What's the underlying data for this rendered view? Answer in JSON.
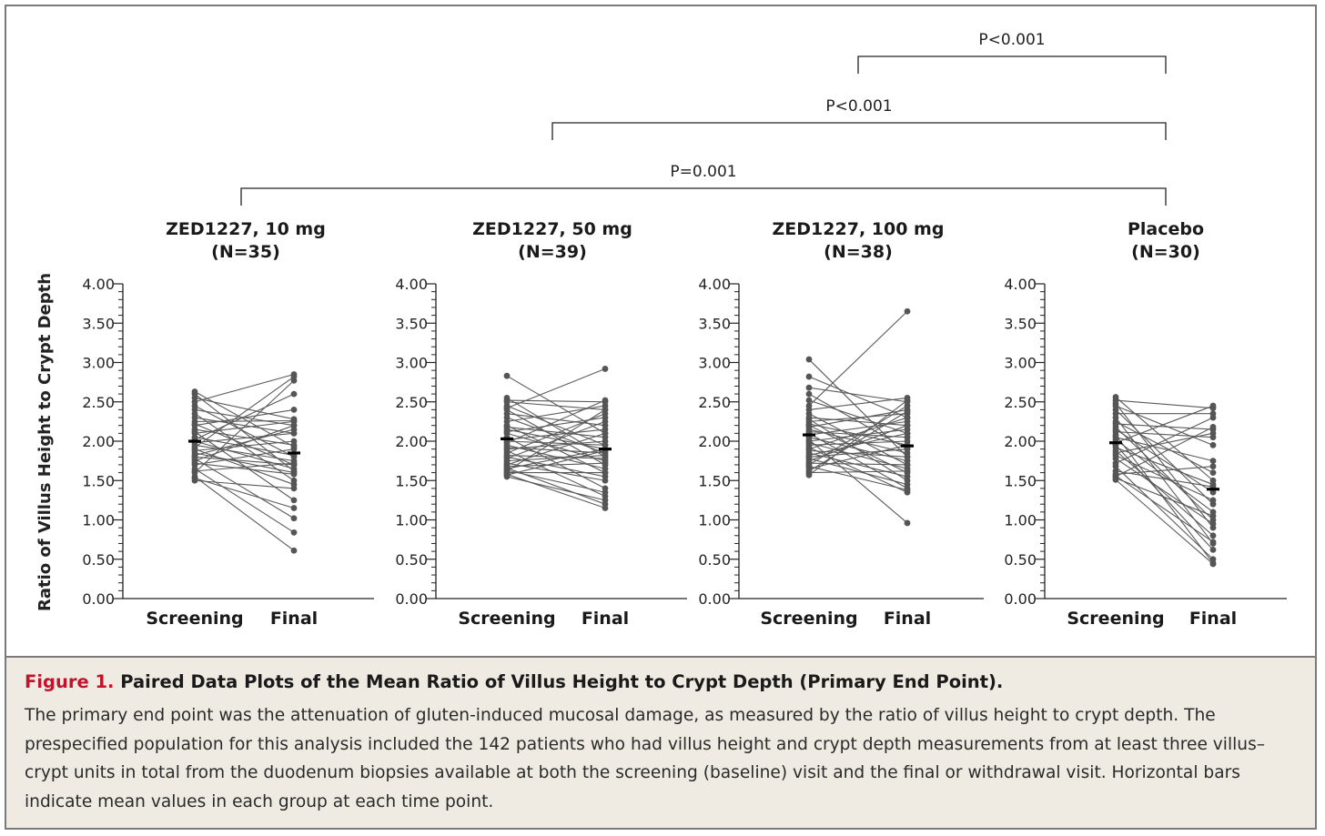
{
  "chart_data": {
    "type": "paired-dot",
    "ylabel": "Ratio of Villus Height to Crypt Depth",
    "ylim": [
      0,
      4
    ],
    "yticks": [
      "0.00",
      "0.50",
      "1.00",
      "1.50",
      "2.00",
      "2.50",
      "3.00",
      "3.50",
      "4.00"
    ],
    "x_categories": [
      "Screening",
      "Final"
    ],
    "comparisons": [
      {
        "label": "P<0.001",
        "from_panel": 2,
        "to_panel": 3
      },
      {
        "label": "P<0.001",
        "from_panel": 1,
        "to_panel": 3
      },
      {
        "label": "P=0.001",
        "from_panel": 0,
        "to_panel": 3
      }
    ],
    "panels": [
      {
        "name": "ZED1227, 10 mg",
        "n_label": "(N=35)",
        "mean_screening": 2.0,
        "mean_final": 1.85,
        "pairs": [
          [
            2.63,
            1.93
          ],
          [
            2.6,
            1.62
          ],
          [
            2.55,
            2.28
          ],
          [
            2.5,
            2.85
          ],
          [
            2.45,
            1.8
          ],
          [
            2.4,
            2.2
          ],
          [
            2.35,
            1.5
          ],
          [
            2.3,
            2.1
          ],
          [
            2.25,
            2.26
          ],
          [
            2.22,
            1.7
          ],
          [
            2.2,
            2.4
          ],
          [
            2.15,
            1.95
          ],
          [
            2.12,
            1.25
          ],
          [
            2.1,
            2.25
          ],
          [
            2.05,
            1.82
          ],
          [
            2.02,
            2.6
          ],
          [
            2.0,
            1.65
          ],
          [
            1.98,
            2.1
          ],
          [
            1.95,
            1.75
          ],
          [
            1.92,
            2.82
          ],
          [
            1.9,
            1.45
          ],
          [
            1.88,
            2.0
          ],
          [
            1.85,
            1.6
          ],
          [
            1.82,
            2.15
          ],
          [
            1.8,
            1.7
          ],
          [
            1.78,
            1.02
          ],
          [
            1.75,
            2.2
          ],
          [
            1.72,
            1.58
          ],
          [
            1.7,
            1.9
          ],
          [
            1.65,
            0.84
          ],
          [
            1.62,
            1.72
          ],
          [
            1.6,
            2.77
          ],
          [
            1.55,
            0.61
          ],
          [
            1.53,
            1.15
          ],
          [
            1.5,
            1.4
          ]
        ]
      },
      {
        "name": "ZED1227, 50 mg",
        "n_label": "(N=39)",
        "mean_screening": 2.03,
        "mean_final": 1.9,
        "pairs": [
          [
            2.83,
            2.1
          ],
          [
            2.55,
            1.8
          ],
          [
            2.52,
            2.5
          ],
          [
            2.5,
            2.4
          ],
          [
            2.45,
            1.95
          ],
          [
            2.42,
            2.92
          ],
          [
            2.4,
            1.7
          ],
          [
            2.35,
            2.2
          ],
          [
            2.3,
            1.85
          ],
          [
            2.25,
            2.45
          ],
          [
            2.2,
            1.6
          ],
          [
            2.18,
            2.05
          ],
          [
            2.15,
            1.9
          ],
          [
            2.12,
            2.3
          ],
          [
            2.1,
            1.75
          ],
          [
            2.05,
            1.4
          ],
          [
            2.02,
            2.15
          ],
          [
            2.0,
            1.95
          ],
          [
            1.98,
            2.52
          ],
          [
            1.95,
            1.65
          ],
          [
            1.92,
            1.85
          ],
          [
            1.9,
            2.0
          ],
          [
            1.88,
            1.3
          ],
          [
            1.85,
            2.35
          ],
          [
            1.82,
            1.78
          ],
          [
            1.8,
            1.55
          ],
          [
            1.78,
            2.25
          ],
          [
            1.75,
            1.82
          ],
          [
            1.72,
            1.5
          ],
          [
            1.7,
            2.1
          ],
          [
            1.68,
            1.72
          ],
          [
            1.66,
            1.2
          ],
          [
            1.65,
            1.9
          ],
          [
            1.63,
            1.35
          ],
          [
            1.62,
            2.4
          ],
          [
            1.6,
            1.6
          ],
          [
            1.58,
            1.15
          ],
          [
            1.57,
            1.88
          ],
          [
            1.55,
            1.25
          ]
        ]
      },
      {
        "name": "ZED1227, 100 mg",
        "n_label": "(N=38)",
        "mean_screening": 2.08,
        "mean_final": 1.94,
        "pairs": [
          [
            3.04,
            1.8
          ],
          [
            2.82,
            2.3
          ],
          [
            2.68,
            2.5
          ],
          [
            2.6,
            1.9
          ],
          [
            2.52,
            2.1
          ],
          [
            2.45,
            3.65
          ],
          [
            2.4,
            2.55
          ],
          [
            2.35,
            1.7
          ],
          [
            2.3,
            2.2
          ],
          [
            2.28,
            1.5
          ],
          [
            2.25,
            2.35
          ],
          [
            2.22,
            1.95
          ],
          [
            2.2,
            1.6
          ],
          [
            2.18,
            2.4
          ],
          [
            2.15,
            1.85
          ],
          [
            2.12,
            2.05
          ],
          [
            2.1,
            1.4
          ],
          [
            2.08,
            2.25
          ],
          [
            2.05,
            1.75
          ],
          [
            2.02,
            0.96
          ],
          [
            2.0,
            2.15
          ],
          [
            1.98,
            1.65
          ],
          [
            1.95,
            2.0
          ],
          [
            1.92,
            1.35
          ],
          [
            1.9,
            2.3
          ],
          [
            1.88,
            1.8
          ],
          [
            1.85,
            1.55
          ],
          [
            1.82,
            2.1
          ],
          [
            1.8,
            1.9
          ],
          [
            1.78,
            1.45
          ],
          [
            1.75,
            2.2
          ],
          [
            1.72,
            1.7
          ],
          [
            1.7,
            2.45
          ],
          [
            1.68,
            1.38
          ],
          [
            1.65,
            1.95
          ],
          [
            1.62,
            2.38
          ],
          [
            1.6,
            1.62
          ],
          [
            1.57,
            2.52
          ]
        ]
      },
      {
        "name": "Placebo",
        "n_label": "(N=30)",
        "mean_screening": 1.98,
        "mean_final": 1.39,
        "pairs": [
          [
            2.56,
            1.5
          ],
          [
            2.52,
            2.42
          ],
          [
            2.48,
            0.9
          ],
          [
            2.45,
            1.95
          ],
          [
            2.4,
            1.2
          ],
          [
            2.35,
            2.35
          ],
          [
            2.3,
            0.7
          ],
          [
            2.25,
            1.6
          ],
          [
            2.22,
            2.15
          ],
          [
            2.18,
            1.0
          ],
          [
            2.15,
            1.35
          ],
          [
            2.12,
            2.05
          ],
          [
            2.08,
            0.45
          ],
          [
            2.05,
            1.75
          ],
          [
            2.02,
            1.1
          ],
          [
            1.98,
            2.45
          ],
          [
            1.95,
            0.62
          ],
          [
            1.92,
            1.45
          ],
          [
            1.88,
            0.8
          ],
          [
            1.85,
            2.1
          ],
          [
            1.82,
            1.25
          ],
          [
            1.78,
            0.95
          ],
          [
            1.72,
            2.3
          ],
          [
            1.68,
            0.5
          ],
          [
            1.62,
            1.42
          ],
          [
            1.58,
            1.68
          ],
          [
            1.56,
            0.72
          ],
          [
            1.55,
            2.18
          ],
          [
            1.53,
            1.05
          ],
          [
            1.51,
            0.44
          ]
        ]
      }
    ]
  },
  "caption": {
    "label": "Figure 1.",
    "title": "Paired Data Plots of the Mean Ratio of Villus Height to Crypt Depth (Primary End Point).",
    "body": "The primary end point was the attenuation of gluten-induced mucosal damage, as measured by the ratio of villus height to crypt depth. The prespecified population for this analysis included the 142 patients who had villus height and crypt depth measurements from at least three villus–crypt units in total from the duodenum biopsies available at both the screening (baseline) visit and the final or with­drawal visit. Horizontal bars indicate mean values in each group at each time point."
  },
  "colors": {
    "points": "#555555",
    "lines": "#5a5a5a",
    "axis": "#222222",
    "accent": "#c0142d",
    "caption_bg": "#efebe2"
  }
}
